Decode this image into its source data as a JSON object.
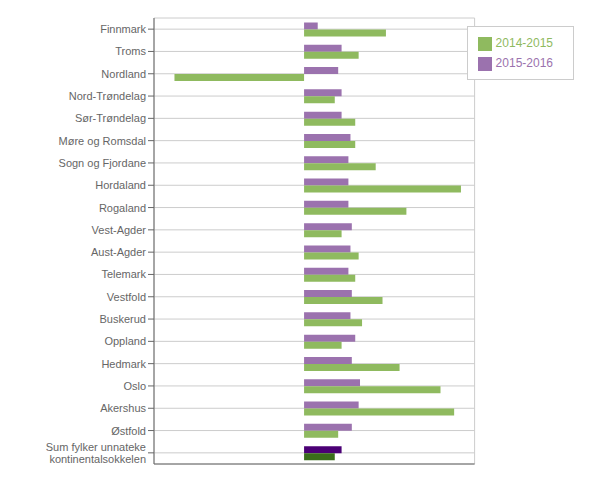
{
  "chart_data": {
    "type": "bar",
    "orientation": "horizontal",
    "categories": [
      "Finnmark",
      "Troms",
      "Nordland",
      "Nord-Trøndelag",
      "Sør-Trøndelag",
      "Møre og Romsdal",
      "Sogn og Fjordane",
      "Hordaland",
      "Rogaland",
      "Vest-Agder",
      "Aust-Agder",
      "Telemark",
      "Vestfold",
      "Buskerud",
      "Oppland",
      "Hedmark",
      "Oslo",
      "Akershus",
      "Østfold",
      "Sum fylker unnateke\nkontinentalsokkelen"
    ],
    "series": [
      {
        "name": "2015-2016",
        "color": "#9b72ae",
        "colors": [
          "#9b72ae",
          "#9b72ae",
          "#9b72ae",
          "#9b72ae",
          "#9b72ae",
          "#9b72ae",
          "#9b72ae",
          "#9b72ae",
          "#9b72ae",
          "#9b72ae",
          "#9b72ae",
          "#9b72ae",
          "#9b72ae",
          "#9b72ae",
          "#9b72ae",
          "#9b72ae",
          "#9b72ae",
          "#9b72ae",
          "#9b72ae",
          "#4b0075"
        ],
        "values": [
          2.0,
          5.5,
          5.0,
          5.5,
          5.5,
          6.8,
          6.5,
          6.5,
          6.5,
          7.0,
          6.8,
          6.5,
          7.0,
          6.8,
          7.5,
          7.0,
          8.2,
          8.0,
          7.0,
          5.5
        ]
      },
      {
        "name": "2014-2015",
        "color": "#8fba5f",
        "colors": [
          "#8fba5f",
          "#8fba5f",
          "#8fba5f",
          "#8fba5f",
          "#8fba5f",
          "#8fba5f",
          "#8fba5f",
          "#8fba5f",
          "#8fba5f",
          "#8fba5f",
          "#8fba5f",
          "#8fba5f",
          "#8fba5f",
          "#8fba5f",
          "#8fba5f",
          "#8fba5f",
          "#8fba5f",
          "#8fba5f",
          "#8fba5f",
          "#3a6e1a"
        ],
        "values": [
          12.0,
          8.0,
          -19.0,
          4.5,
          7.5,
          7.5,
          10.5,
          23.0,
          15.0,
          5.5,
          8.0,
          7.5,
          11.5,
          8.5,
          5.5,
          14.0,
          20.0,
          22.0,
          5.0,
          4.5
        ]
      }
    ],
    "xlim": [
      -22,
      25
    ],
    "xticks": [
      -20,
      -15,
      -10,
      -5,
      0,
      5,
      10,
      15,
      20,
      25
    ],
    "grid": true,
    "legend": "upper right",
    "tick_labels": "y"
  }
}
